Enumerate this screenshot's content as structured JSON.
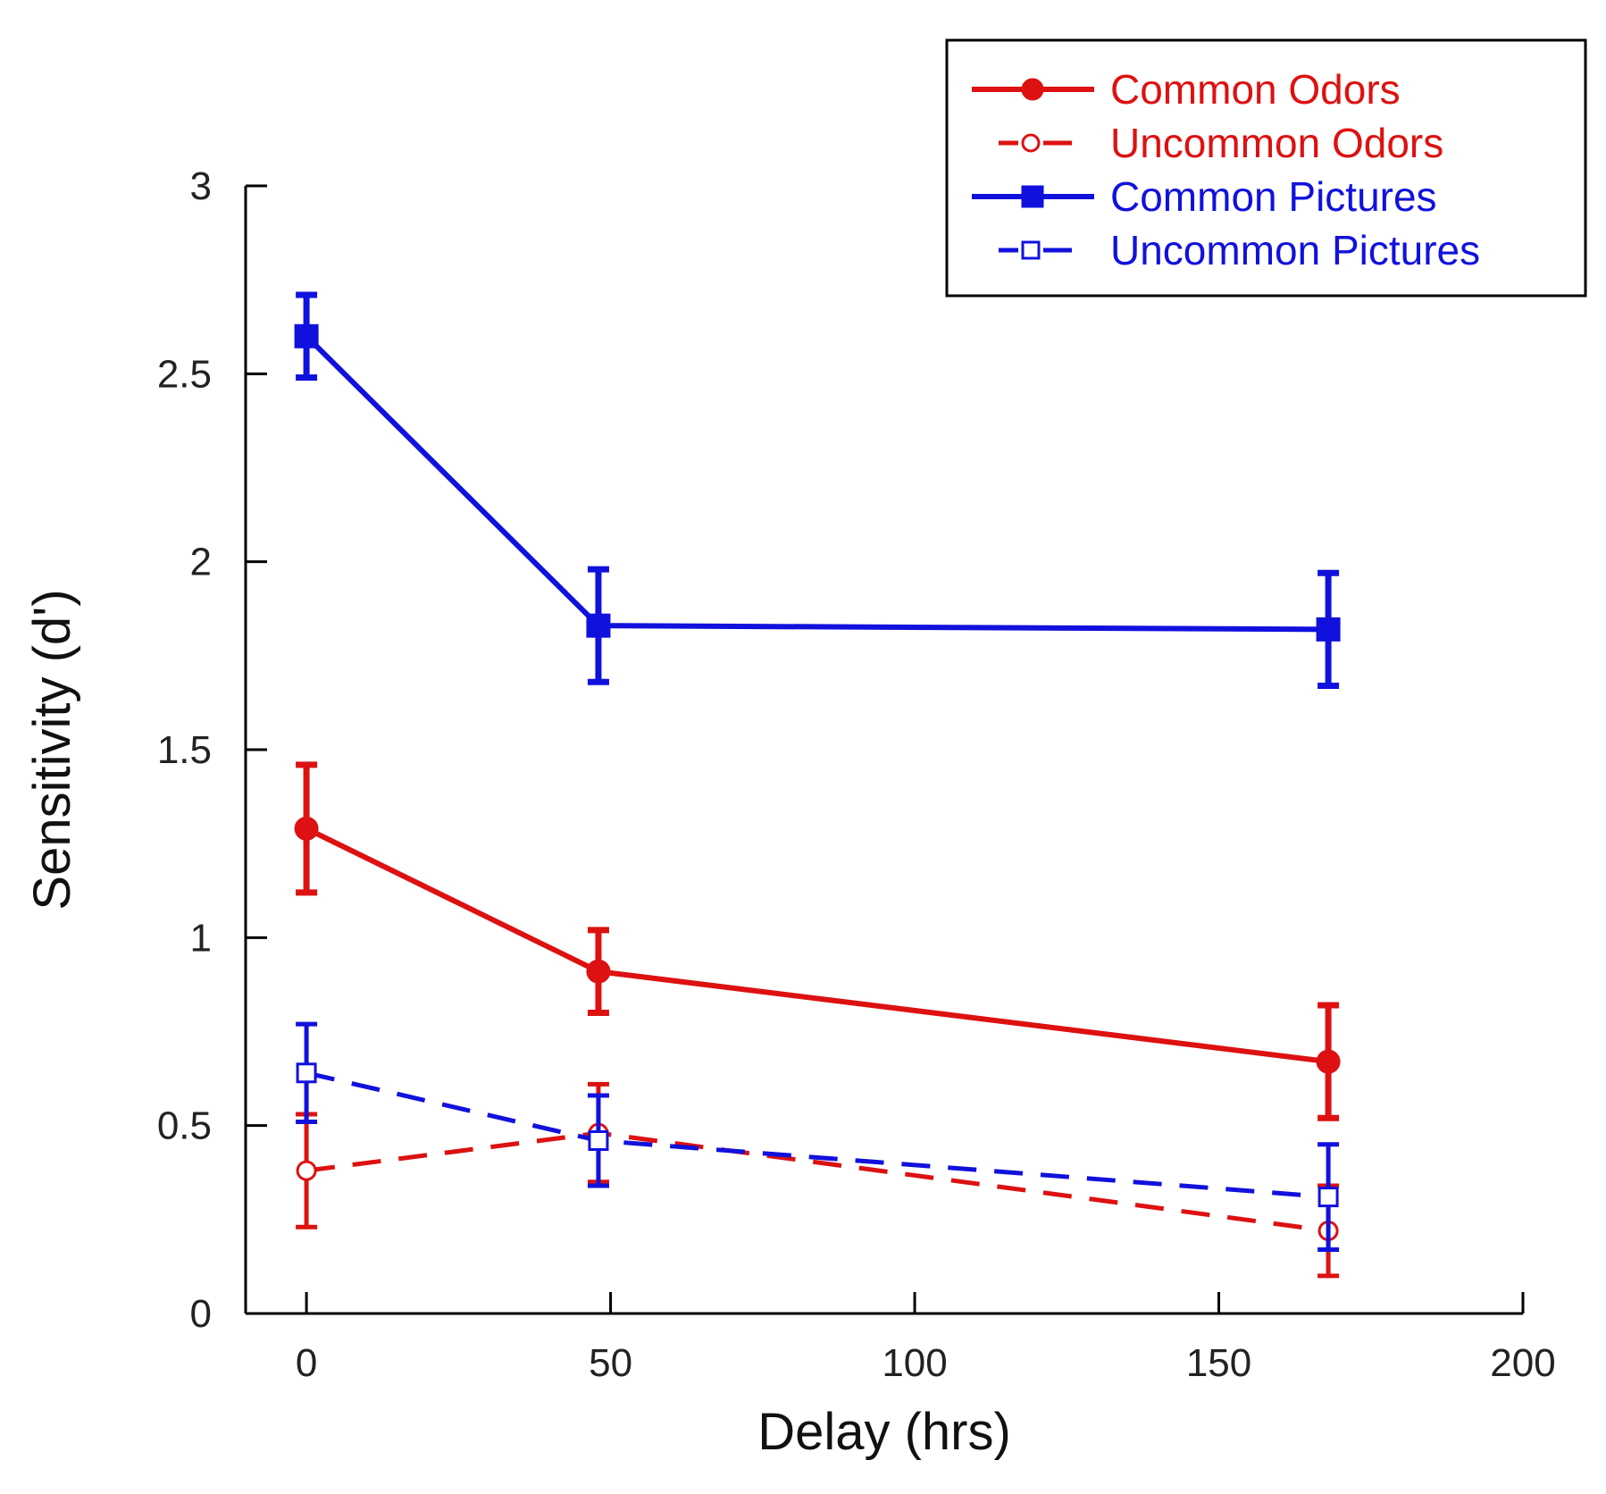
{
  "chart_data": {
    "type": "line",
    "title": "",
    "xlabel": "Delay (hrs)",
    "ylabel": "Sensitivity (d')",
    "xlim": [
      -10,
      200
    ],
    "ylim": [
      0,
      3
    ],
    "xticks": [
      0,
      50,
      100,
      150,
      200
    ],
    "yticks": [
      0,
      0.5,
      1,
      1.5,
      2,
      2.5,
      3
    ],
    "xtick_labels": [
      "0",
      "50",
      "100",
      "150",
      "200"
    ],
    "ytick_labels": [
      "0",
      "0.5",
      "1",
      "1.5",
      "2",
      "2.5",
      "3"
    ],
    "grid": false,
    "legend": "top-right",
    "x": [
      0,
      48,
      168
    ],
    "series": [
      {
        "name": "Common Odors",
        "color": "#dd1111",
        "dashed": false,
        "marker": "circle",
        "filled": true,
        "values": [
          1.29,
          0.91,
          0.67
        ],
        "errors": [
          0.17,
          0.11,
          0.15
        ]
      },
      {
        "name": "Uncommon Odors",
        "color": "#dd1111",
        "dashed": true,
        "marker": "circle",
        "filled": false,
        "values": [
          0.38,
          0.48,
          0.22
        ],
        "errors": [
          0.15,
          0.13,
          0.12
        ]
      },
      {
        "name": "Common Pictures",
        "color": "#1111dd",
        "dashed": false,
        "marker": "square",
        "filled": true,
        "values": [
          2.6,
          1.83,
          1.82
        ],
        "errors": [
          0.11,
          0.15,
          0.15
        ]
      },
      {
        "name": "Uncommon Pictures",
        "color": "#1111dd",
        "dashed": true,
        "marker": "square",
        "filled": false,
        "values": [
          0.64,
          0.46,
          0.31
        ],
        "errors": [
          0.13,
          0.12,
          0.14
        ]
      }
    ]
  }
}
